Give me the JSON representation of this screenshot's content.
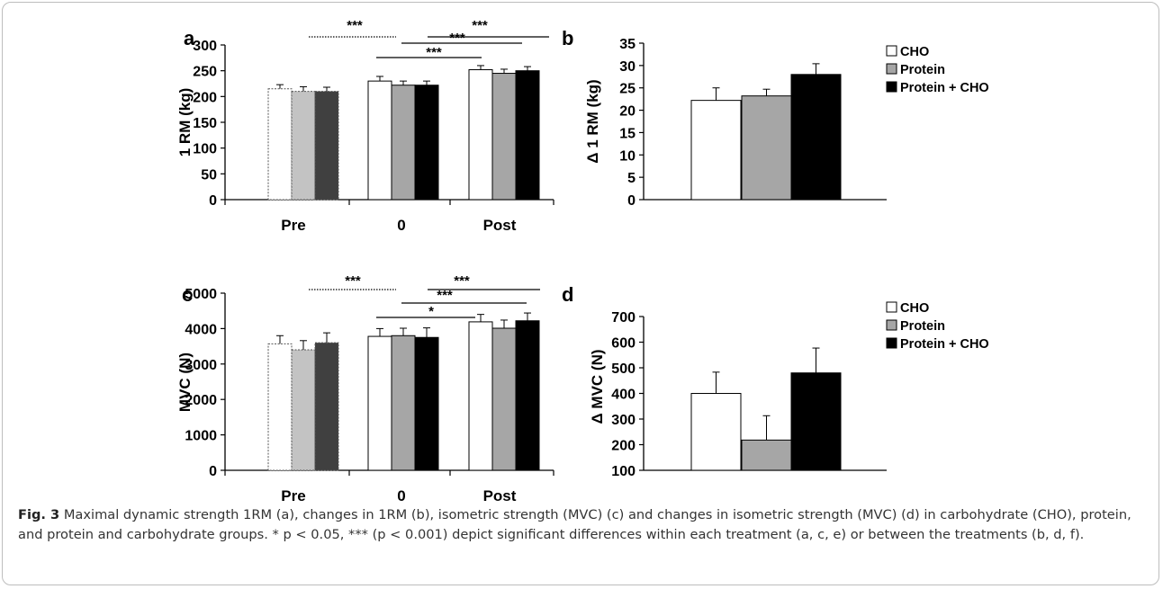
{
  "chart_data": [
    {
      "id": "a",
      "type": "bar",
      "panel_label": "a",
      "ylabel": "1 RM (kg)",
      "ylim": [
        0,
        300
      ],
      "yticks": [
        0,
        50,
        100,
        150,
        200,
        250,
        300
      ],
      "categories": [
        "Pre",
        "0",
        "Post"
      ],
      "series": [
        {
          "name": "CHO",
          "values": [
            215,
            230,
            252
          ],
          "errors": [
            8,
            9,
            8
          ]
        },
        {
          "name": "Protein",
          "values": [
            210,
            222,
            245
          ],
          "errors": [
            9,
            8,
            8
          ]
        },
        {
          "name": "Protein + CHO",
          "values": [
            210,
            222,
            250
          ],
          "errors": [
            8,
            8,
            8
          ]
        }
      ],
      "annotations": [
        {
          "label": "***",
          "from": "Pre",
          "to": "0",
          "style": "dotted"
        },
        {
          "label": "***",
          "from": "0",
          "to": "Post",
          "style": "solid"
        },
        {
          "label": "***",
          "from": "0",
          "to": "Post",
          "style": "solid"
        },
        {
          "label": "***",
          "from": "0",
          "to": "Post",
          "style": "solid"
        }
      ]
    },
    {
      "id": "b",
      "type": "bar",
      "panel_label": "b",
      "ylabel": "Δ  1 RM (kg)",
      "ylim": [
        0,
        35
      ],
      "yticks": [
        0,
        5,
        10,
        15,
        20,
        25,
        30,
        35
      ],
      "series": [
        {
          "name": "CHO",
          "values": [
            22.2
          ],
          "errors": [
            2.8
          ]
        },
        {
          "name": "Protein",
          "values": [
            23.2
          ],
          "errors": [
            1.5
          ]
        },
        {
          "name": "Protein + CHO",
          "values": [
            28
          ],
          "errors": [
            2.4
          ]
        }
      ],
      "legend": [
        "CHO",
        "Protein",
        "Protein + CHO"
      ]
    },
    {
      "id": "c",
      "type": "bar",
      "panel_label": "c",
      "ylabel": "MVC  (N)",
      "ylim": [
        0,
        5000
      ],
      "yticks": [
        0,
        1000,
        2000,
        3000,
        4000,
        5000
      ],
      "categories": [
        "Pre",
        "0",
        "Post"
      ],
      "series": [
        {
          "name": "CHO",
          "values": [
            3570,
            3780,
            4190
          ],
          "errors": [
            230,
            220,
            210
          ]
        },
        {
          "name": "Protein",
          "values": [
            3400,
            3800,
            4010
          ],
          "errors": [
            260,
            210,
            230
          ]
        },
        {
          "name": "Protein + CHO",
          "values": [
            3600,
            3750,
            4220
          ],
          "errors": [
            280,
            270,
            220
          ]
        }
      ],
      "annotations": [
        {
          "label": "***",
          "from": "Pre",
          "to": "0",
          "style": "dotted"
        },
        {
          "label": "***",
          "from": "0",
          "to": "Post",
          "style": "solid"
        },
        {
          "label": "***",
          "from": "0",
          "to": "Post",
          "style": "solid"
        },
        {
          "label": "*",
          "from": "0",
          "to": "Post",
          "style": "solid"
        }
      ]
    },
    {
      "id": "d",
      "type": "bar",
      "panel_label": "d",
      "ylabel": "Δ  MVC (N)",
      "ylim": [
        100,
        700
      ],
      "yticks": [
        100,
        200,
        300,
        400,
        500,
        600,
        700
      ],
      "series": [
        {
          "name": "CHO",
          "values": [
            400
          ],
          "errors": [
            83
          ]
        },
        {
          "name": "Protein",
          "values": [
            218
          ],
          "errors": [
            95
          ]
        },
        {
          "name": "Protein + CHO",
          "values": [
            480
          ],
          "errors": [
            97
          ]
        }
      ],
      "legend": [
        "CHO",
        "Protein",
        "Protein + CHO"
      ]
    }
  ],
  "colors": {
    "CHO": "#ffffff",
    "Protein": "#a6a6a6",
    "Protein + CHO": "#000000",
    "pre_CHO": "#ffffff",
    "pre_Protein": "#c3c3c3",
    "pre_Protein + CHO": "#404040"
  },
  "caption": {
    "fig_label": "Fig. 3",
    "text": "Maximal dynamic strength 1RM (a), changes in 1RM (b), isometric strength (MVC) (c) and changes in isometric strength (MVC) (d) in carbohydrate (CHO), protein, and protein and carbohydrate groups. * p < 0.05, *** (p < 0.001) depict significant differences within each treatment (a, c, e) or between the treatments (b, d, f)."
  }
}
